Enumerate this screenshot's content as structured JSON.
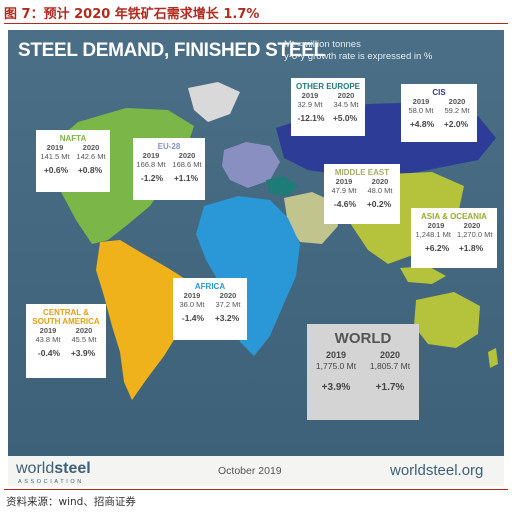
{
  "figure_title": "图 7：预计 2020 年铁矿石需求增长 1.7%",
  "source_note": "资料来源：wind、招商证券",
  "map": {
    "title": "STEEL DEMAND, FINISHED STEEL",
    "units_line1": "Mt =million tonnes",
    "units_line2": "y-o-y growth rate is expressed in %"
  },
  "regions": [
    {
      "name": "NAFTA",
      "year1": "2019",
      "year2": "2020",
      "val1": "141.5 Mt",
      "val2": "142.6 Mt",
      "growth1": "+0.6%",
      "growth2": "+0.8%",
      "color": "#7ab648"
    },
    {
      "name": "EU-28",
      "year1": "2019",
      "year2": "2020",
      "val1": "166.8 Mt",
      "val2": "168.6 Mt",
      "growth1": "-1.2%",
      "growth2": "+1.1%",
      "color": "#8a8fc2"
    },
    {
      "name": "OTHER EUROPE",
      "year1": "2019",
      "year2": "2020",
      "val1": "32.9 Mt",
      "val2": "34.5 Mt",
      "growth1": "-12.1%",
      "growth2": "+5.0%",
      "color": "#1f7b78"
    },
    {
      "name": "CIS",
      "year1": "2019",
      "year2": "2020",
      "val1": "58.0 Mt",
      "val2": "59.2 Mt",
      "growth1": "+4.8%",
      "growth2": "+2.0%",
      "color": "#2d3c96"
    },
    {
      "name": "MIDDLE EAST",
      "year1": "2019",
      "year2": "2020",
      "val1": "47.9 Mt",
      "val2": "48.0 Mt",
      "growth1": "-4.6%",
      "growth2": "+0.2%",
      "color": "#c2c48d"
    },
    {
      "name": "ASIA & OCEANIA",
      "year1": "2019",
      "year2": "2020",
      "val1": "1,248.1 Mt",
      "val2": "1,270.0 Mt",
      "growth1": "+6.2%",
      "growth2": "+1.8%",
      "color": "#b4c23c"
    },
    {
      "name": "AFRICA",
      "year1": "2019",
      "year2": "2020",
      "val1": "36.0 Mt",
      "val2": "37.2 Mt",
      "growth1": "-1.4%",
      "growth2": "+3.2%",
      "color": "#2a97d6"
    },
    {
      "name": "CENTRAL & SOUTH AMERICA",
      "year1": "2019",
      "year2": "2020",
      "val1": "43.8 Mt",
      "val2": "45.5 Mt",
      "growth1": "-0.4%",
      "growth2": "+3.9%",
      "color": "#f0b21b"
    }
  ],
  "world": {
    "name": "WORLD",
    "year1": "2019",
    "year2": "2020",
    "val1": "1,775.0 Mt",
    "val2": "1,805.7 Mt",
    "growth1": "+3.9%",
    "growth2": "+1.7%"
  },
  "footer": {
    "logo_world": "world",
    "logo_steel": "steel",
    "logo_sub": "ASSOCIATION",
    "date": "October 2019",
    "website": "worldsteel.org"
  }
}
